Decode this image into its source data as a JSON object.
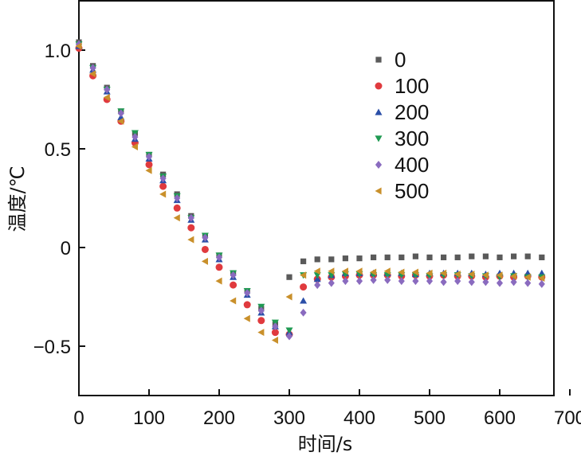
{
  "chart_data": {
    "type": "scatter",
    "xlabel": "时间/s",
    "ylabel": "温度/℃",
    "xlim": [
      0,
      700
    ],
    "ylim": [
      -0.75,
      1.25
    ],
    "xticks": [
      0,
      100,
      200,
      300,
      400,
      500,
      600,
      700
    ],
    "yticks": [
      -0.5,
      0,
      0.5,
      1.0
    ],
    "ytick_labels": [
      "−0.5",
      "0",
      "0.5",
      "1.0"
    ],
    "grid": false,
    "legend_position": "top-right",
    "series": [
      {
        "name": "0",
        "marker": "square",
        "color": "#5a5a5a",
        "x": [
          0,
          20,
          40,
          60,
          80,
          100,
          120,
          140,
          160,
          180,
          200,
          220,
          240,
          260,
          280,
          300,
          320,
          340,
          360,
          380,
          400,
          420,
          440,
          460,
          480,
          500,
          520,
          540,
          560,
          580,
          600,
          620,
          640,
          660
        ],
        "y": [
          1.04,
          0.92,
          0.81,
          0.69,
          0.58,
          0.47,
          0.37,
          0.27,
          0.16,
          0.06,
          -0.04,
          -0.13,
          -0.22,
          -0.31,
          -0.39,
          -0.15,
          -0.07,
          -0.06,
          -0.06,
          -0.055,
          -0.055,
          -0.05,
          -0.05,
          -0.05,
          -0.045,
          -0.05,
          -0.05,
          -0.05,
          -0.045,
          -0.045,
          -0.05,
          -0.045,
          -0.045,
          -0.05
        ]
      },
      {
        "name": "100",
        "marker": "circle",
        "color": "#e03a3e",
        "x": [
          0,
          20,
          40,
          60,
          80,
          100,
          120,
          140,
          160,
          180,
          200,
          220,
          240,
          260,
          280,
          300,
          320,
          340,
          360,
          380,
          400,
          420,
          440,
          460,
          480,
          500,
          520,
          540,
          560,
          580,
          600,
          620,
          640,
          660
        ],
        "y": [
          1.01,
          0.87,
          0.75,
          0.64,
          0.53,
          0.42,
          0.31,
          0.2,
          0.1,
          -0.01,
          -0.1,
          -0.19,
          -0.29,
          -0.37,
          -0.43,
          -0.44,
          -0.2,
          -0.16,
          -0.15,
          -0.145,
          -0.14,
          -0.14,
          -0.14,
          -0.145,
          -0.14,
          -0.145,
          -0.14,
          -0.145,
          -0.145,
          -0.15,
          -0.145,
          -0.15,
          -0.145,
          -0.15
        ]
      },
      {
        "name": "200",
        "marker": "triangle-up",
        "color": "#2b4fa8",
        "x": [
          0,
          20,
          40,
          60,
          80,
          100,
          120,
          140,
          160,
          180,
          200,
          220,
          240,
          260,
          280,
          300,
          320,
          340,
          360,
          380,
          400,
          420,
          440,
          460,
          480,
          500,
          520,
          540,
          560,
          580,
          600,
          620,
          640,
          660
        ],
        "y": [
          1.02,
          0.9,
          0.79,
          0.66,
          0.55,
          0.45,
          0.34,
          0.24,
          0.14,
          0.04,
          -0.06,
          -0.15,
          -0.24,
          -0.33,
          -0.4,
          -0.43,
          -0.27,
          -0.16,
          -0.14,
          -0.13,
          -0.13,
          -0.13,
          -0.13,
          -0.13,
          -0.135,
          -0.13,
          -0.13,
          -0.13,
          -0.13,
          -0.135,
          -0.13,
          -0.13,
          -0.13,
          -0.13
        ]
      },
      {
        "name": "300",
        "marker": "triangle-down",
        "color": "#1f9a52",
        "x": [
          0,
          20,
          40,
          60,
          80,
          100,
          120,
          140,
          160,
          180,
          200,
          220,
          240,
          260,
          280,
          300,
          320,
          340,
          360,
          380,
          400,
          420,
          440,
          460,
          480,
          500,
          520,
          540,
          560,
          580,
          600,
          620,
          640,
          660
        ],
        "y": [
          1.03,
          0.91,
          0.8,
          0.69,
          0.58,
          0.47,
          0.36,
          0.26,
          0.15,
          0.06,
          -0.04,
          -0.13,
          -0.22,
          -0.3,
          -0.38,
          -0.42,
          -0.14,
          -0.14,
          -0.14,
          -0.135,
          -0.135,
          -0.14,
          -0.14,
          -0.14,
          -0.14,
          -0.145,
          -0.14,
          -0.14,
          -0.145,
          -0.145,
          -0.15,
          -0.145,
          -0.15,
          -0.15
        ]
      },
      {
        "name": "400",
        "marker": "diamond",
        "color": "#8a6bbf",
        "x": [
          0,
          20,
          40,
          60,
          80,
          100,
          120,
          140,
          160,
          180,
          200,
          220,
          240,
          260,
          280,
          300,
          320,
          340,
          360,
          380,
          400,
          420,
          440,
          460,
          480,
          500,
          520,
          540,
          560,
          580,
          600,
          620,
          640,
          660
        ],
        "y": [
          1.03,
          0.91,
          0.8,
          0.68,
          0.56,
          0.46,
          0.35,
          0.25,
          0.15,
          0.05,
          -0.05,
          -0.14,
          -0.23,
          -0.32,
          -0.4,
          -0.45,
          -0.33,
          -0.19,
          -0.18,
          -0.17,
          -0.17,
          -0.165,
          -0.165,
          -0.17,
          -0.17,
          -0.17,
          -0.175,
          -0.17,
          -0.175,
          -0.175,
          -0.18,
          -0.175,
          -0.18,
          -0.185
        ]
      },
      {
        "name": "500",
        "marker": "triangle-left",
        "color": "#c9902b",
        "x": [
          0,
          20,
          40,
          60,
          80,
          100,
          120,
          140,
          160,
          180,
          200,
          220,
          240,
          260,
          280,
          300,
          320,
          340,
          360,
          380,
          400,
          420,
          440,
          460,
          480,
          500,
          520,
          540,
          560,
          580,
          600,
          620,
          640,
          660
        ],
        "y": [
          1.02,
          0.88,
          0.76,
          0.64,
          0.51,
          0.39,
          0.27,
          0.15,
          0.04,
          -0.07,
          -0.17,
          -0.27,
          -0.36,
          -0.43,
          -0.47,
          -0.25,
          -0.14,
          -0.12,
          -0.12,
          -0.12,
          -0.12,
          -0.125,
          -0.12,
          -0.125,
          -0.125,
          -0.13,
          -0.13,
          -0.135,
          -0.135,
          -0.14,
          -0.14,
          -0.145,
          -0.15,
          -0.155
        ]
      }
    ]
  }
}
